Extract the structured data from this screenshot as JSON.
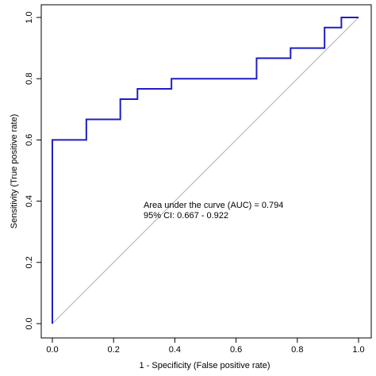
{
  "chart_data": {
    "type": "line",
    "xlabel": "1 - Specificity (False positive rate)",
    "ylabel": "Sensitivity (True positive rate)",
    "xlim": [
      0,
      1
    ],
    "ylim": [
      0,
      1
    ],
    "x_ticks": [
      0.0,
      0.2,
      0.4,
      0.6,
      0.8,
      1.0
    ],
    "y_ticks": [
      0.0,
      0.2,
      0.4,
      0.6,
      0.8,
      1.0
    ],
    "x_tick_labels": [
      "0.0",
      "0.2",
      "0.4",
      "0.6",
      "0.8",
      "1.0"
    ],
    "y_tick_labels": [
      "0.0",
      "0.2",
      "0.4",
      "0.6",
      "0.8",
      "1.0"
    ],
    "grid": false,
    "annotations": [
      "Area under the curve (AUC) = 0.794",
      "95% CI: 0.667 - 0.922"
    ],
    "series": [
      {
        "color": "#1f1fbf",
        "step": true,
        "x": [
          0.0,
          0.0,
          0.111,
          0.111,
          0.222,
          0.222,
          0.278,
          0.278,
          0.389,
          0.389,
          0.667,
          0.667,
          0.778,
          0.778,
          0.889,
          0.889,
          0.944,
          0.944,
          1.0
        ],
        "y": [
          0.0,
          0.6,
          0.6,
          0.667,
          0.667,
          0.733,
          0.733,
          0.767,
          0.767,
          0.8,
          0.8,
          0.867,
          0.867,
          0.9,
          0.9,
          0.967,
          0.967,
          1.0,
          1.0
        ]
      },
      {
        "color": "#b0b0b0",
        "reference": true,
        "x": [
          0,
          1
        ],
        "y": [
          0,
          1
        ]
      }
    ]
  }
}
